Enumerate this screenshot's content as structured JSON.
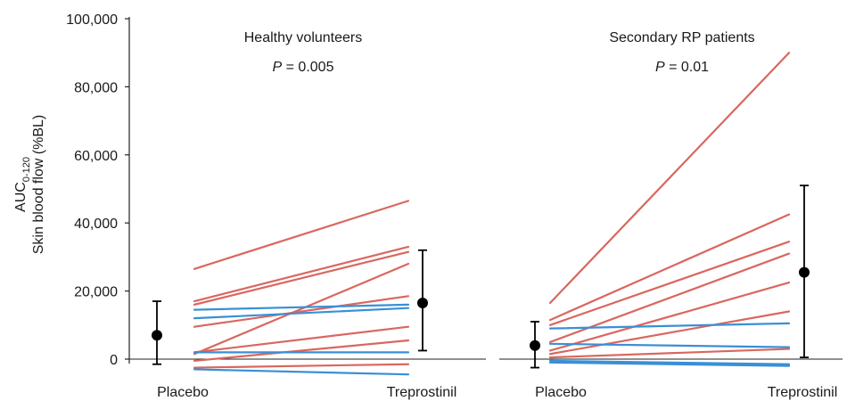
{
  "chart_data": [
    {
      "type": "line",
      "title": "Healthy volunteers",
      "annotation": {
        "stat": "P",
        "value": "= 0.005"
      },
      "ylabel_line1": "AUC",
      "ylabel_sub": "0-120",
      "ylabel_line2": "Skin blood flow (%BL)",
      "y_ticks": [
        "0",
        "20,000",
        "40,000",
        "60,000",
        "80,000",
        "100,000"
      ],
      "ylim": [
        0,
        100000
      ],
      "categories": [
        "Placebo",
        "Treprostinil"
      ],
      "colors": {
        "increase": "#d9675f",
        "decrease": "#3a8fd6",
        "mean": "#000000"
      },
      "subjects": [
        {
          "placebo": 26500,
          "treprostinil": 46500,
          "color": "increase"
        },
        {
          "placebo": 17000,
          "treprostinil": 33000,
          "color": "increase"
        },
        {
          "placebo": 16000,
          "treprostinil": 31500,
          "color": "increase"
        },
        {
          "placebo": 9500,
          "treprostinil": 18500,
          "color": "increase"
        },
        {
          "placebo": 1500,
          "treprostinil": 28000,
          "color": "increase"
        },
        {
          "placebo": 2000,
          "treprostinil": 9500,
          "color": "increase"
        },
        {
          "placebo": -500,
          "treprostinil": 5500,
          "color": "increase"
        },
        {
          "placebo": -2500,
          "treprostinil": -1500,
          "color": "increase"
        },
        {
          "placebo": 14500,
          "treprostinil": 16000,
          "color": "decrease"
        },
        {
          "placebo": 12000,
          "treprostinil": 15000,
          "color": "decrease"
        },
        {
          "placebo": 2000,
          "treprostinil": 2000,
          "color": "decrease"
        },
        {
          "placebo": -3000,
          "treprostinil": -4500,
          "color": "decrease"
        }
      ],
      "means": [
        {
          "mean": 7000,
          "low": -1500,
          "high": 17000
        },
        {
          "mean": 16500,
          "low": 2500,
          "high": 32000
        }
      ]
    },
    {
      "type": "line",
      "title": "Secondary RP patients",
      "annotation": {
        "stat": "P",
        "value": "= 0.01"
      },
      "categories": [
        "Placebo",
        "Treprostinil"
      ],
      "ylim": [
        0,
        100000
      ],
      "subjects": [
        {
          "placebo": 16500,
          "treprostinil": 90000,
          "color": "increase"
        },
        {
          "placebo": 11500,
          "treprostinil": 42500,
          "color": "increase"
        },
        {
          "placebo": 10000,
          "treprostinil": 34500,
          "color": "increase"
        },
        {
          "placebo": 5000,
          "treprostinil": 31000,
          "color": "increase"
        },
        {
          "placebo": 2500,
          "treprostinil": 22500,
          "color": "increase"
        },
        {
          "placebo": 1500,
          "treprostinil": 14000,
          "color": "increase"
        },
        {
          "placebo": 500,
          "treprostinil": 3000,
          "color": "increase"
        },
        {
          "placebo": 9000,
          "treprostinil": 10500,
          "color": "decrease"
        },
        {
          "placebo": 4500,
          "treprostinil": 3500,
          "color": "decrease"
        },
        {
          "placebo": -500,
          "treprostinil": -1500,
          "color": "decrease"
        },
        {
          "placebo": -1000,
          "treprostinil": -2000,
          "color": "decrease"
        }
      ],
      "means": [
        {
          "mean": 4000,
          "low": -2500,
          "high": 11000
        },
        {
          "mean": 25500,
          "low": 500,
          "high": 51000
        }
      ]
    }
  ]
}
